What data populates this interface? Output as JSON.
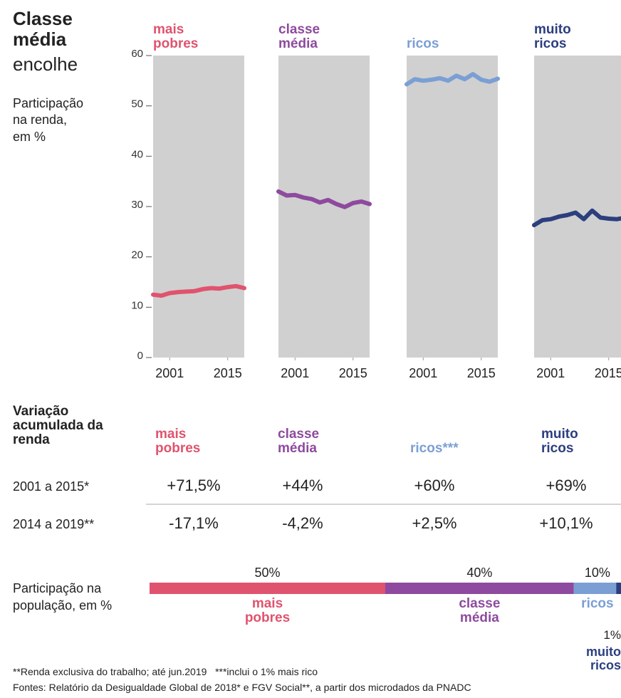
{
  "title": "Classe média",
  "subtitle": "encolhe",
  "chart_data": {
    "type": "line",
    "ylabel": "Participação na renda, em %",
    "x": [
      1997,
      1999,
      2001,
      2003,
      2005,
      2007,
      2009,
      2011,
      2013,
      2015,
      2017,
      2019
    ],
    "xlim": [
      1997,
      2019
    ],
    "xticks": [
      2001,
      2015
    ],
    "ylim": [
      0,
      60
    ],
    "yticks": [
      0,
      10,
      20,
      30,
      40,
      50,
      60
    ],
    "series": [
      {
        "name": "mais pobres",
        "color": "#e0536e",
        "values": [
          12.5,
          12.3,
          12.8,
          13.0,
          13.1,
          13.2,
          13.6,
          13.8,
          13.7,
          14.0,
          14.2,
          13.8
        ]
      },
      {
        "name": "classe média",
        "color": "#8e4a9e",
        "values": [
          33.0,
          32.2,
          32.3,
          31.8,
          31.5,
          30.8,
          31.3,
          30.5,
          29.9,
          30.7,
          31.0,
          30.5
        ]
      },
      {
        "name": "ricos",
        "color": "#7b9fd4",
        "values": [
          54.3,
          55.3,
          55.0,
          55.2,
          55.5,
          55.0,
          56.0,
          55.3,
          56.3,
          55.2,
          54.8,
          55.4
        ]
      },
      {
        "name": "muito ricos",
        "color": "#2b3f7e",
        "values": [
          26.3,
          27.3,
          27.5,
          28.0,
          28.3,
          28.8,
          27.5,
          29.2,
          27.8,
          27.6,
          27.5,
          27.8
        ]
      }
    ]
  },
  "income_table": {
    "title": "Variação acumulada da renda",
    "columns": [
      "mais pobres",
      "classe média",
      "ricos***",
      "muito ricos"
    ],
    "rows": [
      {
        "label": "2001 a 2015*",
        "values": [
          "+71,5%",
          "+44%",
          "+60%",
          "+69%"
        ]
      },
      {
        "label": "2014 a 2019**",
        "values": [
          "-17,1%",
          "-4,2%",
          "+2,5%",
          "+10,1%"
        ]
      }
    ]
  },
  "population": {
    "type": "bar",
    "title": "Participação na população, em %",
    "categories": [
      "mais pobres",
      "classe média",
      "ricos",
      "muito ricos"
    ],
    "values": [
      50,
      40,
      10,
      1
    ],
    "value_labels": [
      "50%",
      "40%",
      "10%",
      "1%"
    ],
    "colors": [
      "#e0536e",
      "#8e4a9e",
      "#7b9fd4",
      "#2b3f7e"
    ],
    "xlim": [
      0,
      100
    ]
  },
  "footnotes": [
    "**Renda exclusiva do trabalho; até jun.2019   ***inclui o 1% mais rico",
    "Fontes: Relatório da Desigualdade Global de 2018* e FGV Social**, a partir dos microdados da PNADC"
  ]
}
